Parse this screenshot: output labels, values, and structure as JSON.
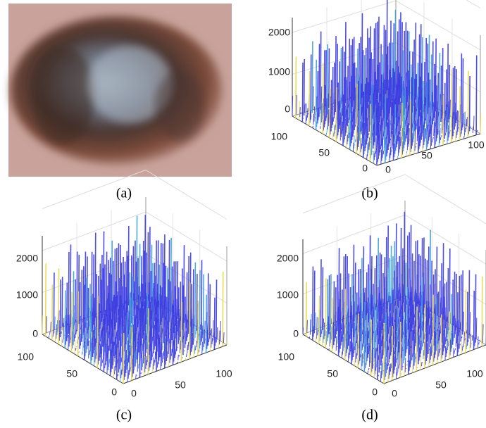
{
  "panels": [
    {
      "caption": "(a)"
    },
    {
      "caption": "(b)",
      "z_ticks": [
        2000,
        1000,
        0
      ],
      "left_ticks": [
        100,
        50,
        0
      ],
      "right_ticks": [
        0,
        50,
        100
      ]
    },
    {
      "caption": "(c)",
      "z_ticks": [
        2000,
        1000,
        0
      ],
      "left_ticks": [
        100,
        50,
        0
      ],
      "right_ticks": [
        0,
        50,
        100
      ]
    },
    {
      "caption": "(d)",
      "z_ticks": [
        2000,
        1000,
        0
      ],
      "left_ticks": [
        100,
        50,
        0
      ],
      "right_ticks": [
        0,
        50,
        100
      ]
    }
  ]
}
